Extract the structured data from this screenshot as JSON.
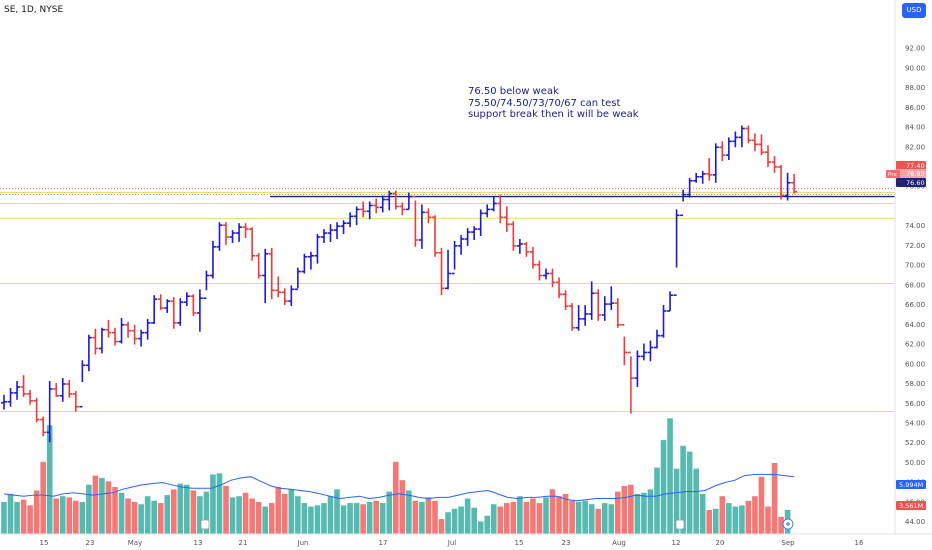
{
  "header": {
    "symbol": "SE, 1D, NYSE",
    "currency": "USD"
  },
  "annotation": [
    "76.50 below weak",
    "75.50/74.50/73/70/67 can test",
    "support break then it will be weak"
  ],
  "colors": {
    "up": "#1a1ad6",
    "down": "#ef3a3a",
    "vol_up": "#26a69a",
    "vol_down": "#ef5350",
    "hline": "#d6d64a",
    "level": "#1a237e",
    "dotted": "#ef5350",
    "vol_ma": "#2962ff"
  },
  "chart_data": {
    "type": "ohlc",
    "title": "SE, 1D, NYSE",
    "y_axis": {
      "range": [
        43,
        95
      ],
      "ticks": [
        "92.00",
        "90.00",
        "88.00",
        "86.00",
        "84.00",
        "82.00",
        "80.00",
        "78.00",
        "74.00",
        "72.00",
        "70.00",
        "68.00",
        "66.00",
        "64.00",
        "62.00",
        "60.00",
        "58.00",
        "56.00",
        "54.00",
        "52.00",
        "50.00",
        "48.00",
        "46.00",
        "44.00"
      ]
    },
    "x_axis": {
      "labels": [
        "15",
        "23",
        "May",
        "13",
        "21",
        "Jun",
        "17",
        "Jul",
        "15",
        "23",
        "Aug",
        "12",
        "20",
        "Sep",
        "16"
      ]
    },
    "bars": [
      [
        56,
        56.8,
        55.3,
        56.1
      ],
      [
        56.1,
        57.5,
        55.6,
        57
      ],
      [
        57,
        58.2,
        56.3,
        57.6
      ],
      [
        57.6,
        58.8,
        56.6,
        56.9
      ],
      [
        56.9,
        57.3,
        55.8,
        56.2
      ],
      [
        56.2,
        56.5,
        54,
        54.3
      ],
      [
        54.3,
        54.6,
        52.6,
        53
      ],
      [
        53,
        58.2,
        52,
        57.4
      ],
      [
        57.4,
        58,
        56.6,
        56.7
      ],
      [
        56.7,
        58.5,
        56.1,
        57.9
      ],
      [
        57.9,
        58.3,
        56.5,
        56.9
      ],
      [
        56.9,
        57.2,
        55.1,
        55.6
      ],
      [
        55.6,
        60.3,
        58.1,
        59.8
      ],
      [
        59.8,
        62.9,
        59.2,
        62.6
      ],
      [
        62.6,
        63.5,
        60.9,
        61.5
      ],
      [
        61.5,
        63.6,
        61,
        63.4
      ],
      [
        63.4,
        64.4,
        62.6,
        63.1
      ],
      [
        63.1,
        63.6,
        61.8,
        62.2
      ],
      [
        62.2,
        64.6,
        62,
        63.9
      ],
      [
        63.9,
        64.2,
        62.6,
        63.3
      ],
      [
        63.3,
        63.9,
        61.9,
        62.5
      ],
      [
        62.5,
        63.4,
        61.7,
        63.1
      ],
      [
        63.1,
        64.5,
        62.4,
        64.1
      ],
      [
        64.1,
        66.9,
        64,
        66.5
      ],
      [
        66.5,
        67,
        65.4,
        65.6
      ],
      [
        65.6,
        66.5,
        65.1,
        66.3
      ],
      [
        66.3,
        66.7,
        63.5,
        64.1
      ],
      [
        64.1,
        66.6,
        63.8,
        66.2
      ],
      [
        66.2,
        67.2,
        65.8,
        66.8
      ],
      [
        66.8,
        67,
        64.8,
        65.1
      ],
      [
        65.1,
        67.5,
        63.2,
        66.6
      ],
      [
        66.6,
        69.4,
        67.4,
        68.9
      ],
      [
        68.9,
        72.4,
        68.6,
        71.8
      ],
      [
        71.8,
        74.3,
        71.4,
        74
      ],
      [
        74,
        74.3,
        72,
        72.8
      ],
      [
        72.8,
        73.5,
        72.2,
        73.2
      ],
      [
        73.2,
        74.2,
        72.3,
        73.8
      ],
      [
        73.8,
        74.2,
        72.7,
        73.6
      ],
      [
        73.6,
        73.8,
        70.4,
        70.9
      ],
      [
        70.9,
        71.2,
        68.6,
        68.9
      ],
      [
        68.9,
        71.6,
        66.1,
        71.1
      ],
      [
        71.1,
        71.7,
        66.5,
        67.4
      ],
      [
        67.4,
        68.8,
        66.7,
        67.2
      ],
      [
        67.2,
        67.6,
        65.9,
        66.3
      ],
      [
        66.3,
        67.9,
        65.8,
        67.5
      ],
      [
        67.5,
        69.7,
        67.6,
        69.3
      ],
      [
        69.3,
        71.1,
        69.1,
        70.8
      ],
      [
        70.8,
        71.3,
        69.5,
        70.9
      ],
      [
        70.9,
        73.1,
        70.1,
        72.8
      ],
      [
        72.8,
        73.6,
        72.2,
        73.2
      ],
      [
        73.2,
        74.1,
        72.3,
        73.5
      ],
      [
        73.5,
        74.3,
        72.6,
        73.9
      ],
      [
        73.9,
        74.5,
        73.1,
        74.2
      ],
      [
        74.2,
        75.3,
        73.8,
        74.9
      ],
      [
        74.9,
        75.9,
        74,
        75.6
      ],
      [
        75.6,
        76.4,
        74.8,
        75.4
      ],
      [
        75.4,
        76.4,
        74.6,
        76
      ],
      [
        76,
        76.7,
        75.2,
        75.8
      ],
      [
        75.8,
        77,
        75.3,
        76.6
      ],
      [
        76.6,
        77.5,
        75.5,
        77.2
      ],
      [
        77.2,
        77.5,
        75.6,
        75.9
      ],
      [
        75.9,
        76.3,
        75,
        75.6
      ],
      [
        75.6,
        77.3,
        75.6,
        76.9
      ],
      [
        76.9,
        76.5,
        71.8,
        72.5
      ],
      [
        72.5,
        76.1,
        71.6,
        75.3
      ],
      [
        75.3,
        75.7,
        74.2,
        74.8
      ],
      [
        74.8,
        75,
        70.8,
        71.2
      ],
      [
        71.2,
        71.7,
        66.9,
        67.6
      ],
      [
        67.6,
        71.5,
        67.5,
        69.1
      ],
      [
        69.1,
        72.4,
        69.5,
        71.9
      ],
      [
        71.9,
        73,
        71,
        72.6
      ],
      [
        72.6,
        73.7,
        71.9,
        73.3
      ],
      [
        73.3,
        73.9,
        72.5,
        73.6
      ],
      [
        73.6,
        75.6,
        72.9,
        75.2
      ],
      [
        75.2,
        76.1,
        74.8,
        75.6
      ],
      [
        75.6,
        76.9,
        75.4,
        76.2
      ],
      [
        76.2,
        77.1,
        74.2,
        74.8
      ],
      [
        74.8,
        75.9,
        73.3,
        74.1
      ],
      [
        74.1,
        74.4,
        71.4,
        71.9
      ],
      [
        71.9,
        72.6,
        71.1,
        72.1
      ],
      [
        72.1,
        72.3,
        70.8,
        71.3
      ],
      [
        71.3,
        71.8,
        69.6,
        70
      ],
      [
        70,
        70.4,
        68.4,
        68.9
      ],
      [
        68.9,
        69.6,
        68.5,
        69.1
      ],
      [
        69.1,
        69.6,
        67.7,
        68.2
      ],
      [
        68.2,
        68.7,
        66.6,
        67
      ],
      [
        67,
        67.4,
        65.4,
        65.8
      ],
      [
        65.8,
        66.1,
        63.3,
        63.6
      ],
      [
        63.6,
        65.9,
        63.3,
        64.5
      ],
      [
        64.5,
        65.9,
        63.8,
        65
      ],
      [
        65,
        68.3,
        64.4,
        67.1
      ],
      [
        67.1,
        67.5,
        64.3,
        64.9
      ],
      [
        64.9,
        66.8,
        64.3,
        66
      ],
      [
        66,
        67.8,
        65.4,
        66.1
      ],
      [
        66.1,
        66.6,
        63.6,
        63.9
      ],
      [
        63.9,
        62.7,
        59.8,
        61.1
      ],
      [
        61.1,
        60.7,
        54.9,
        58.5
      ],
      [
        58.5,
        61.3,
        57.6,
        60.7
      ],
      [
        60.7,
        62,
        60.3,
        61.1
      ],
      [
        61.1,
        62.3,
        60.2,
        61.6
      ],
      [
        61.6,
        63.4,
        61.5,
        62.8
      ],
      [
        62.8,
        65.9,
        62.6,
        65.3
      ],
      [
        65.3,
        67.3,
        65.3,
        66.9
      ],
      [
        66.9,
        75.6,
        69.7,
        75
      ],
      [
        75,
        77.6,
        76.4,
        77.1
      ],
      [
        77.1,
        78.8,
        76.8,
        78.5
      ],
      [
        78.5,
        79.3,
        78.3,
        78.9
      ],
      [
        78.9,
        79.5,
        78.2,
        79.2
      ],
      [
        79.2,
        80.8,
        78.5,
        79.1
      ],
      [
        79.1,
        82.3,
        78.3,
        81.9
      ],
      [
        81.9,
        82.5,
        80.5,
        81.1
      ],
      [
        81.1,
        82.9,
        80.6,
        82.5
      ],
      [
        82.5,
        83.5,
        81.9,
        82.9
      ],
      [
        82.9,
        84.1,
        81.9,
        83.8
      ],
      [
        83.8,
        84.1,
        82.3,
        82.6
      ],
      [
        82.6,
        83.3,
        81.5,
        82.2
      ],
      [
        82.2,
        83.2,
        81.1,
        81.4
      ],
      [
        81.4,
        82.1,
        79.9,
        80.4
      ],
      [
        80.4,
        81,
        79.3,
        79.9
      ],
      [
        79.9,
        80.1,
        76.6,
        77
      ],
      [
        77,
        79.3,
        76.5,
        78.3
      ],
      [
        78.3,
        79.2,
        77.2,
        77.4
      ]
    ],
    "volume": {
      "range": [
        44,
        55.7
      ],
      "values": [
        46.8,
        47.5,
        46.8,
        47,
        46.5,
        47.8,
        50.3,
        53.5,
        47.1,
        47.3,
        47.2,
        46.9,
        46.8,
        48.3,
        49.1,
        48.9,
        48.6,
        48.1,
        47.6,
        47.1,
        46.8,
        46.6,
        47.3,
        46.9,
        46.7,
        47.4,
        47.9,
        48.4,
        48.3,
        47.8,
        47.3,
        47.7,
        49.2,
        49.3,
        48.2,
        47.2,
        47.3,
        47.6,
        47.1,
        46.8,
        46.4,
        46.7,
        48.1,
        47.5,
        47.9,
        47.3,
        46.7,
        46.4,
        46.5,
        46.7,
        47.3,
        47.9,
        46.5,
        46.7,
        46.7,
        46.6,
        46.8,
        46.9,
        46.7,
        47.7,
        50.3,
        48.7,
        47.8,
        46.9,
        46.8,
        47.2,
        46.9,
        45.3,
        45.9,
        46.2,
        46.4,
        47.1,
        46.3,
        45.1,
        45.6,
        46.6,
        46.4,
        46.7,
        46.8,
        47.3,
        46.8,
        47.1,
        46.7,
        47.2,
        47.9,
        47.3,
        47.5,
        46.9,
        46.8,
        46.9,
        46.6,
        46.2,
        46.7,
        46.6,
        47.7,
        48.2,
        48.3,
        47.5,
        47.6,
        47.9,
        49.8,
        52.2,
        54.1,
        49.7,
        51.7,
        51.2,
        49.7,
        47.5,
        46.1,
        46.2,
        47.3,
        46.7,
        46.4,
        46.5,
        46.9,
        47.3,
        49,
        46.4,
        50.2,
        45.5,
        46.1
      ],
      "ma": [
        47.5,
        47.4,
        47.3,
        47.4,
        47.4,
        47.3,
        47.5,
        47.6,
        47.5,
        47.4,
        47.5,
        47.6,
        47.9,
        48.1,
        48.3,
        48.4,
        48.5,
        48.3,
        48.1,
        48,
        48,
        48,
        48.3,
        48.7,
        48.9,
        49,
        48.6,
        48.2,
        48,
        47.9,
        47.8,
        47.7,
        47.5,
        47.3,
        47.1,
        47.2,
        47.3,
        47.1,
        47.2,
        47.4,
        47.5,
        47.4,
        47.2,
        47.1,
        47.2,
        47.2,
        47.4,
        47.6,
        47.7,
        47.8,
        47.5,
        47.2,
        47.1,
        47.2,
        47.2,
        47.3,
        47.3,
        47,
        46.9,
        47,
        47.1,
        47.1,
        47.1,
        47.2,
        47.4,
        47.3,
        47.3,
        47.5,
        47.6,
        47.7,
        47.7,
        47.8,
        48.2,
        48.5,
        48.7,
        49.1,
        49.2,
        49.2,
        49.2,
        49.1,
        49
      ],
      "labels": [
        "5.994M",
        "3.561M"
      ]
    },
    "levels": {
      "horizontal": [
        77.3,
        76.2,
        74.7,
        68.1,
        55.1
      ],
      "resistance": 76.9,
      "dotted": [
        77.7,
        77.1
      ]
    },
    "price_labels": [
      "77.40",
      "76.93",
      "76.60"
    ],
    "pre_label": "Pre"
  }
}
